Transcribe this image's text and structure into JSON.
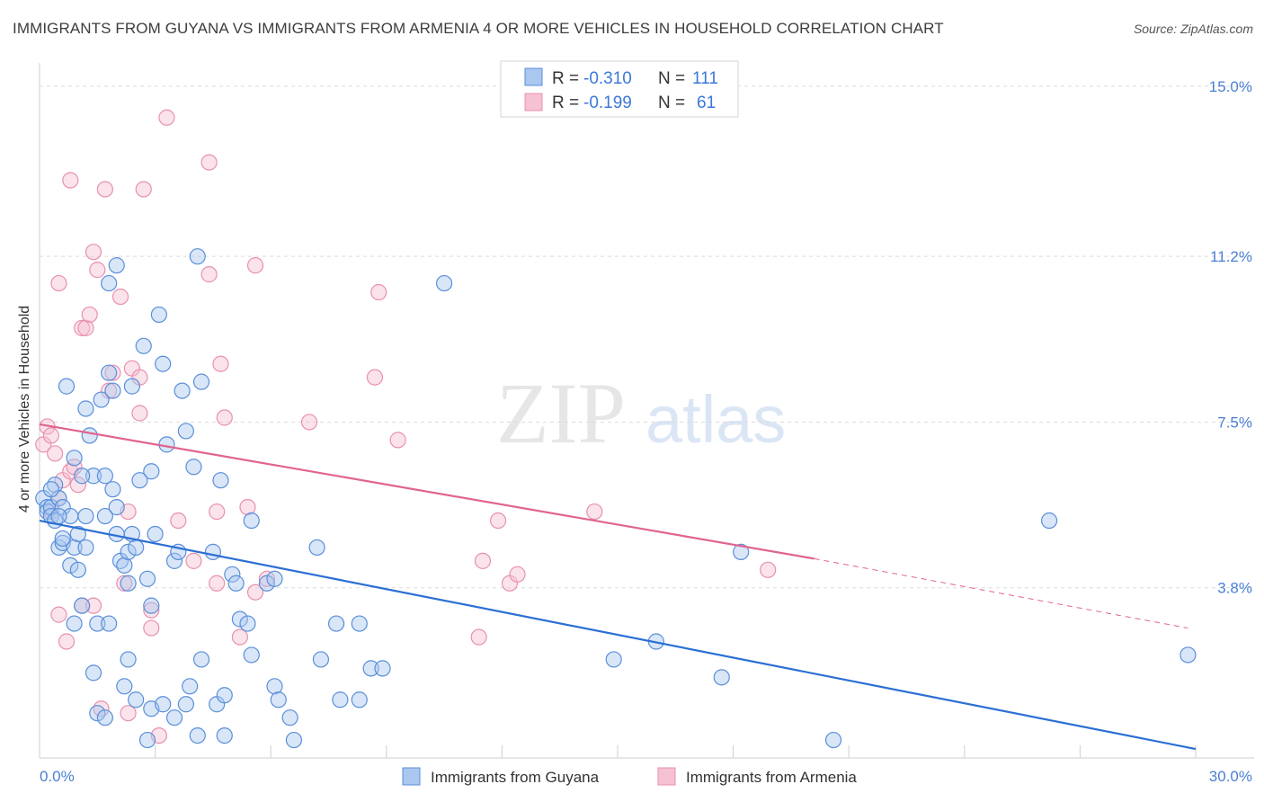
{
  "title": "IMMIGRANTS FROM GUYANA VS IMMIGRANTS FROM ARMENIA 4 OR MORE VEHICLES IN HOUSEHOLD CORRELATION CHART",
  "source": "Source: ZipAtlas.com",
  "watermark": {
    "zip": "ZIP",
    "atlas": "atlas"
  },
  "stats": {
    "r_label": "R =",
    "n_label": "N =",
    "guyana": {
      "r": "-0.310",
      "n": "111"
    },
    "armenia": {
      "r": "-0.199",
      "n": "61"
    }
  },
  "colors": {
    "guyana_fill": "#a9c7ef",
    "guyana_stroke": "#5b8fd9",
    "guyana_line": "#2b6fd4",
    "armenia_fill": "#f6c1d2",
    "armenia_stroke": "#e891ad",
    "armenia_line": "#e0648f",
    "tick_text": "#4a7fd4"
  },
  "chart_data": {
    "type": "scatter",
    "title": "IMMIGRANTS FROM GUYANA VS IMMIGRANTS FROM ARMENIA 4 OR MORE VEHICLES IN HOUSEHOLD CORRELATION CHART",
    "xlabel": "",
    "ylabel": "4 or more Vehicles in Household",
    "xlim": [
      0,
      30
    ],
    "ylim": [
      0,
      15.4
    ],
    "x_tick_labels": [
      "0.0%",
      "30.0%"
    ],
    "y_ticks": [
      3.8,
      7.5,
      11.2,
      15.0
    ],
    "y_tick_labels": [
      "3.8%",
      "7.5%",
      "11.2%",
      "15.0%"
    ],
    "grid": "horizontal dashed",
    "legend_position": "bottom-center",
    "series": [
      {
        "name": "Immigrants from Guyana",
        "trend": {
          "x": [
            0,
            30
          ],
          "y": [
            5.3,
            0.2
          ]
        },
        "points": [
          [
            0.1,
            5.8
          ],
          [
            0.2,
            5.6
          ],
          [
            0.2,
            5.5
          ],
          [
            0.3,
            5.6
          ],
          [
            0.3,
            5.4
          ],
          [
            0.4,
            6.1
          ],
          [
            0.4,
            5.3
          ],
          [
            0.5,
            5.8
          ],
          [
            0.5,
            4.7
          ],
          [
            0.6,
            5.6
          ],
          [
            0.6,
            4.8
          ],
          [
            0.7,
            8.3
          ],
          [
            0.8,
            5.4
          ],
          [
            0.8,
            4.3
          ],
          [
            0.9,
            4.7
          ],
          [
            0.9,
            6.7
          ],
          [
            0.9,
            3.0
          ],
          [
            1.0,
            4.2
          ],
          [
            1.0,
            5.0
          ],
          [
            1.1,
            3.4
          ],
          [
            1.2,
            7.8
          ],
          [
            1.2,
            5.4
          ],
          [
            1.2,
            4.7
          ],
          [
            1.3,
            7.2
          ],
          [
            1.4,
            6.3
          ],
          [
            1.4,
            1.9
          ],
          [
            1.5,
            3.0
          ],
          [
            1.5,
            1.0
          ],
          [
            1.6,
            8.0
          ],
          [
            1.7,
            6.3
          ],
          [
            1.7,
            5.4
          ],
          [
            1.7,
            0.9
          ],
          [
            1.8,
            10.6
          ],
          [
            1.8,
            3.0
          ],
          [
            1.8,
            8.6
          ],
          [
            1.9,
            8.2
          ],
          [
            1.9,
            6.0
          ],
          [
            2.0,
            11.0
          ],
          [
            2.0,
            5.6
          ],
          [
            2.0,
            5.0
          ],
          [
            2.1,
            4.4
          ],
          [
            2.2,
            4.3
          ],
          [
            2.2,
            1.6
          ],
          [
            2.3,
            4.6
          ],
          [
            2.3,
            2.2
          ],
          [
            2.3,
            3.9
          ],
          [
            2.4,
            5.0
          ],
          [
            2.4,
            8.3
          ],
          [
            2.5,
            4.7
          ],
          [
            2.5,
            1.3
          ],
          [
            2.7,
            9.2
          ],
          [
            2.8,
            4.0
          ],
          [
            2.8,
            0.4
          ],
          [
            2.9,
            3.4
          ],
          [
            2.9,
            6.4
          ],
          [
            2.9,
            1.1
          ],
          [
            3.0,
            5.0
          ],
          [
            3.1,
            9.9
          ],
          [
            3.2,
            1.2
          ],
          [
            3.2,
            8.8
          ],
          [
            3.3,
            7.0
          ],
          [
            3.5,
            4.4
          ],
          [
            3.5,
            0.9
          ],
          [
            3.6,
            4.6
          ],
          [
            3.7,
            8.2
          ],
          [
            3.8,
            7.3
          ],
          [
            3.8,
            1.2
          ],
          [
            3.9,
            1.6
          ],
          [
            4.0,
            6.5
          ],
          [
            4.1,
            0.5
          ],
          [
            4.1,
            11.2
          ],
          [
            4.2,
            8.4
          ],
          [
            4.2,
            2.2
          ],
          [
            4.5,
            4.6
          ],
          [
            4.6,
            1.2
          ],
          [
            4.7,
            6.2
          ],
          [
            4.8,
            1.4
          ],
          [
            4.8,
            0.5
          ],
          [
            5.0,
            4.1
          ],
          [
            5.1,
            3.9
          ],
          [
            5.2,
            3.1
          ],
          [
            5.4,
            3.0
          ],
          [
            5.5,
            5.3
          ],
          [
            5.5,
            2.3
          ],
          [
            5.9,
            3.9
          ],
          [
            6.1,
            4.0
          ],
          [
            6.1,
            1.6
          ],
          [
            6.2,
            1.3
          ],
          [
            6.5,
            0.9
          ],
          [
            6.6,
            0.4
          ],
          [
            7.2,
            4.7
          ],
          [
            7.3,
            2.2
          ],
          [
            7.7,
            3.0
          ],
          [
            7.8,
            1.3
          ],
          [
            8.3,
            3.0
          ],
          [
            8.3,
            1.3
          ],
          [
            8.6,
            2.0
          ],
          [
            8.9,
            2.0
          ],
          [
            10.5,
            10.6
          ],
          [
            14.9,
            2.2
          ],
          [
            16.0,
            2.6
          ],
          [
            17.7,
            1.8
          ],
          [
            18.2,
            4.6
          ],
          [
            20.6,
            0.4
          ],
          [
            26.2,
            5.3
          ],
          [
            29.8,
            2.3
          ],
          [
            0.3,
            6.0
          ],
          [
            0.6,
            4.9
          ],
          [
            1.1,
            6.3
          ],
          [
            2.6,
            6.2
          ],
          [
            0.5,
            5.4
          ]
        ]
      },
      {
        "name": "Immigrants from Armenia",
        "trend": {
          "x": [
            0,
            20.1
          ],
          "y": [
            7.45,
            4.45
          ]
        },
        "trend_dashed": {
          "x": [
            20.1,
            29.8
          ],
          "y": [
            4.45,
            2.9
          ]
        },
        "points": [
          [
            0.1,
            7.0
          ],
          [
            0.2,
            7.4
          ],
          [
            0.3,
            5.5
          ],
          [
            0.3,
            7.2
          ],
          [
            0.4,
            6.8
          ],
          [
            0.5,
            10.6
          ],
          [
            0.5,
            3.2
          ],
          [
            0.5,
            5.8
          ],
          [
            0.6,
            6.2
          ],
          [
            0.7,
            2.6
          ],
          [
            0.8,
            12.9
          ],
          [
            0.8,
            6.4
          ],
          [
            0.9,
            6.5
          ],
          [
            1.0,
            6.1
          ],
          [
            1.1,
            9.6
          ],
          [
            1.1,
            3.4
          ],
          [
            1.2,
            9.6
          ],
          [
            1.3,
            9.9
          ],
          [
            1.4,
            11.3
          ],
          [
            1.4,
            3.4
          ],
          [
            1.5,
            10.9
          ],
          [
            1.6,
            1.1
          ],
          [
            1.7,
            12.7
          ],
          [
            1.8,
            8.2
          ],
          [
            1.9,
            8.6
          ],
          [
            2.1,
            10.3
          ],
          [
            2.2,
            3.9
          ],
          [
            2.3,
            5.5
          ],
          [
            2.3,
            1.0
          ],
          [
            2.4,
            8.7
          ],
          [
            2.6,
            7.7
          ],
          [
            2.6,
            8.5
          ],
          [
            2.7,
            12.7
          ],
          [
            2.9,
            3.3
          ],
          [
            2.9,
            2.9
          ],
          [
            3.1,
            0.5
          ],
          [
            3.3,
            14.3
          ],
          [
            3.6,
            5.3
          ],
          [
            4.0,
            4.4
          ],
          [
            4.4,
            10.8
          ],
          [
            4.4,
            13.3
          ],
          [
            4.6,
            5.5
          ],
          [
            4.6,
            3.9
          ],
          [
            4.7,
            8.8
          ],
          [
            4.8,
            7.6
          ],
          [
            5.2,
            2.7
          ],
          [
            5.4,
            5.6
          ],
          [
            5.6,
            11.0
          ],
          [
            5.6,
            3.7
          ],
          [
            5.9,
            4.0
          ],
          [
            7.0,
            7.5
          ],
          [
            8.8,
            10.4
          ],
          [
            8.7,
            8.5
          ],
          [
            9.3,
            7.1
          ],
          [
            11.4,
            2.7
          ],
          [
            11.5,
            4.4
          ],
          [
            11.9,
            5.3
          ],
          [
            12.2,
            3.9
          ],
          [
            12.4,
            4.1
          ],
          [
            14.4,
            5.5
          ],
          [
            18.9,
            4.2
          ]
        ]
      }
    ]
  },
  "legend": {
    "guyana": "Immigrants from Guyana",
    "armenia": "Immigrants from Armenia"
  }
}
